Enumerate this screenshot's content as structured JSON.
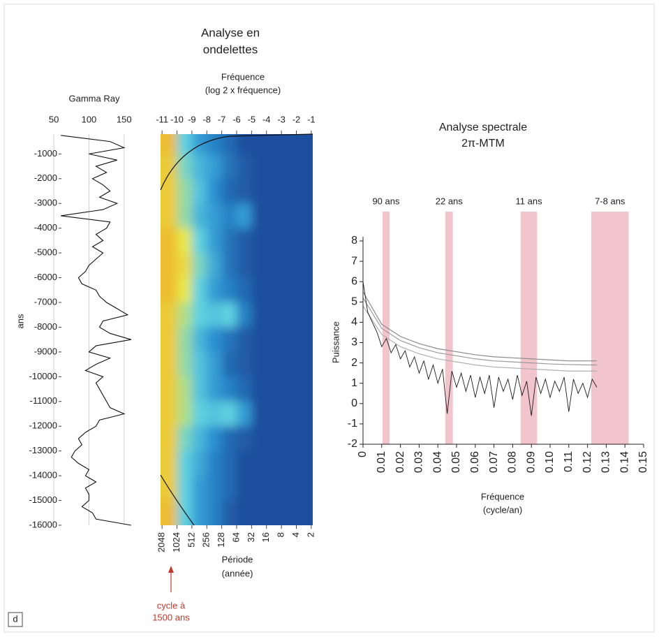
{
  "panel_label": "d",
  "chart_data": [
    {
      "type": "line",
      "orientation": "vertical",
      "title": "Gamma Ray",
      "ylabel": "ans",
      "xlim": [
        33,
        182
      ],
      "xticks": [
        50,
        100,
        150
      ],
      "ylim": [
        -16000,
        -200
      ],
      "yticks": [
        -1000,
        -2000,
        -3000,
        -4000,
        -5000,
        -6000,
        -7000,
        -8000,
        -9000,
        -10000,
        -11000,
        -12000,
        -13000,
        -14000,
        -15000,
        -16000
      ],
      "grid": true,
      "series": [
        {
          "color": "#111111",
          "y": [
            -250,
            -500,
            -750,
            -1000,
            -1250,
            -1500,
            -1750,
            -2000,
            -2250,
            -2500,
            -2750,
            -3000,
            -3250,
            -3500,
            -3750,
            -4000,
            -4250,
            -4500,
            -4750,
            -5000,
            -5250,
            -5500,
            -5750,
            -6000,
            -6250,
            -6500,
            -6750,
            -7000,
            -7250,
            -7500,
            -7750,
            -8000,
            -8250,
            -8500,
            -8750,
            -9000,
            -9250,
            -9500,
            -9750,
            -10000,
            -10250,
            -10500,
            -10750,
            -11000,
            -11250,
            -11500,
            -11750,
            -12000,
            -12250,
            -12500,
            -12750,
            -13000,
            -13250,
            -13500,
            -13750,
            -14000,
            -14250,
            -14500,
            -14750,
            -15000,
            -15250,
            -15500,
            -15750,
            -16000
          ],
          "values": [
            60,
            130,
            150,
            100,
            140,
            110,
            125,
            105,
            120,
            130,
            115,
            140,
            120,
            60,
            130,
            125,
            110,
            120,
            105,
            120,
            110,
            100,
            95,
            85,
            90,
            110,
            115,
            125,
            140,
            155,
            120,
            115,
            130,
            160,
            110,
            100,
            130,
            110,
            95,
            120,
            110,
            115,
            120,
            125,
            130,
            150,
            115,
            110,
            95,
            85,
            90,
            80,
            75,
            85,
            100,
            95,
            110,
            95,
            100,
            100,
            90,
            105,
            110,
            160
          ]
        }
      ]
    },
    {
      "type": "heatmap",
      "title": [
        "Analyse en",
        "ondelettes"
      ],
      "xlabel": [
        "Fréquence",
        "(log 2 x fréquence)"
      ],
      "x2label": [
        "Période",
        "(année)"
      ],
      "annotation": [
        "cycle à",
        "1500 ans"
      ],
      "annotation_color": "#c0392b",
      "annotation_x": -10.4,
      "xlim": [
        -11.1,
        -0.9
      ],
      "xticks": [
        -11,
        -10,
        -9,
        -8,
        -7,
        -6,
        -5,
        -4,
        -3,
        -2,
        -1
      ],
      "x2ticks": [
        2048,
        1024,
        512,
        256,
        128,
        64,
        32,
        16,
        8,
        4,
        2
      ],
      "ylim": [
        -16000,
        -200
      ],
      "colorscale": [
        "#1d4f9f",
        "#2a8fd0",
        "#5fd0e0",
        "#e8e84a",
        "#f0a020"
      ],
      "x": [
        -10.5,
        -9.5,
        -8.5,
        -7.5,
        -6.5,
        -5.5,
        -4.5,
        -3.5,
        -2.5,
        -1.5
      ],
      "y": [
        -500,
        -1500,
        -2500,
        -3500,
        -4500,
        -5500,
        -6500,
        -7500,
        -8500,
        -9500,
        -10500,
        -11500,
        -12500,
        -13500,
        -14500,
        -15500
      ],
      "values": [
        [
          0.9,
          0.5,
          0.3,
          0.2,
          0.1,
          0,
          0,
          0,
          0,
          0
        ],
        [
          0.85,
          0.55,
          0.4,
          0.3,
          0.15,
          0.05,
          0,
          0,
          0,
          0
        ],
        [
          0.85,
          0.6,
          0.45,
          0.25,
          0.1,
          0.05,
          0,
          0,
          0,
          0
        ],
        [
          0.85,
          0.6,
          0.4,
          0.3,
          0.2,
          0.3,
          0,
          0,
          0,
          0
        ],
        [
          0.9,
          0.75,
          0.5,
          0.3,
          0.15,
          0.05,
          0,
          0,
          0,
          0
        ],
        [
          0.9,
          0.8,
          0.55,
          0.35,
          0.15,
          0.05,
          0,
          0,
          0,
          0
        ],
        [
          0.9,
          0.75,
          0.5,
          0.3,
          0.2,
          0.1,
          0,
          0,
          0,
          0
        ],
        [
          0.85,
          0.65,
          0.5,
          0.45,
          0.5,
          0.2,
          0,
          0,
          0,
          0
        ],
        [
          0.85,
          0.6,
          0.4,
          0.25,
          0.15,
          0.05,
          0,
          0,
          0,
          0
        ],
        [
          0.85,
          0.6,
          0.45,
          0.3,
          0.1,
          0.05,
          0,
          0,
          0,
          0
        ],
        [
          0.85,
          0.65,
          0.45,
          0.3,
          0.2,
          0.1,
          0,
          0,
          0,
          0
        ],
        [
          0.85,
          0.65,
          0.5,
          0.45,
          0.5,
          0.3,
          0,
          0,
          0,
          0
        ],
        [
          0.85,
          0.55,
          0.4,
          0.25,
          0.1,
          0.05,
          0,
          0,
          0,
          0
        ],
        [
          0.85,
          0.5,
          0.35,
          0.2,
          0.1,
          0,
          0,
          0,
          0,
          0
        ],
        [
          0.85,
          0.5,
          0.3,
          0.2,
          0.1,
          0,
          0,
          0,
          0,
          0
        ],
        [
          0.9,
          0.5,
          0.3,
          0.2,
          0.05,
          0,
          0,
          0,
          0,
          0
        ]
      ]
    },
    {
      "type": "line",
      "orientation": "horizontal",
      "title": [
        "Analyse spectrale",
        "2π-MTM"
      ],
      "ylabel": "Puissance",
      "xlabel": [
        "Fréquence",
        "(cycle/an)"
      ],
      "xlim": [
        0,
        0.15
      ],
      "xticks": [
        0,
        0.01,
        0.02,
        0.03,
        0.04,
        0.05,
        0.06,
        0.07,
        0.08,
        0.09,
        {
          "value": 0.1,
          "label": "0.10"
        },
        0.11,
        0.12,
        0.13,
        0.14,
        0.15
      ],
      "ylim": [
        -2,
        8
      ],
      "yticks": [
        -2,
        -1,
        0,
        1,
        2,
        3,
        4,
        5,
        6,
        7,
        8
      ],
      "band_color": "#f2c4cb",
      "bands": [
        {
          "label": "90 ans",
          "from": 0.0104,
          "to": 0.0142
        },
        {
          "label": "22 ans",
          "from": 0.044,
          "to": 0.048
        },
        {
          "label": "11 ans",
          "from": 0.0843,
          "to": 0.093
        },
        {
          "label": "7-8 ans",
          "from": 0.122,
          "to": 0.142
        }
      ],
      "series": [
        {
          "color": "#1a1a1a",
          "x": [
            0,
            0.0025,
            0.005,
            0.0075,
            0.01,
            0.0125,
            0.015,
            0.0175,
            0.02,
            0.0225,
            0.025,
            0.0275,
            0.03,
            0.0325,
            0.035,
            0.0375,
            0.04,
            0.0425,
            0.045,
            0.0475,
            0.05,
            0.0525,
            0.055,
            0.0575,
            0.06,
            0.0625,
            0.065,
            0.0675,
            0.07,
            0.0725,
            0.075,
            0.0775,
            0.08,
            0.0825,
            0.085,
            0.0875,
            0.09,
            0.0925,
            0.095,
            0.0975,
            0.1,
            0.1025,
            0.105,
            0.1075,
            0.11,
            0.1125,
            0.115,
            0.1175,
            0.12,
            0.1225,
            0.125
          ],
          "values": [
            6.0,
            4.5,
            4.0,
            3.5,
            2.8,
            3.2,
            2.5,
            2.9,
            2.2,
            2.6,
            1.8,
            2.3,
            1.5,
            2.1,
            1.2,
            1.9,
            1.0,
            1.7,
            -0.5,
            1.6,
            0.8,
            1.5,
            0.6,
            1.4,
            0.3,
            1.3,
            0.5,
            1.4,
            -0.2,
            1.3,
            0.6,
            1.2,
            0.2,
            1.4,
            0.4,
            1.1,
            -0.6,
            1.3,
            0.5,
            1.2,
            0.3,
            1.1,
            0.6,
            1.3,
            -0.4,
            1.2,
            0.5,
            1.0,
            0.3,
            1.2,
            0.8
          ]
        },
        {
          "color": "#8a8a8a",
          "x": [
            0,
            0.01,
            0.02,
            0.03,
            0.04,
            0.05,
            0.06,
            0.07,
            0.08,
            0.09,
            0.1,
            0.11,
            0.12,
            0.125
          ],
          "values": [
            5.5,
            3.9,
            3.3,
            2.95,
            2.7,
            2.55,
            2.4,
            2.3,
            2.25,
            2.2,
            2.15,
            2.1,
            2.1,
            2.1
          ]
        },
        {
          "color": "#9a9a9a",
          "x": [
            0,
            0.01,
            0.02,
            0.03,
            0.04,
            0.05,
            0.06,
            0.07,
            0.08,
            0.09,
            0.1,
            0.11,
            0.12,
            0.125
          ],
          "values": [
            5.2,
            3.7,
            3.1,
            2.75,
            2.5,
            2.35,
            2.2,
            2.1,
            2.05,
            2.0,
            1.95,
            1.92,
            1.9,
            1.9
          ]
        },
        {
          "color": "#b0b0b0",
          "x": [
            0,
            0.01,
            0.02,
            0.03,
            0.04,
            0.05,
            0.06,
            0.07,
            0.08,
            0.09,
            0.1,
            0.11,
            0.12,
            0.125
          ],
          "values": [
            4.8,
            3.4,
            2.8,
            2.45,
            2.2,
            2.05,
            1.9,
            1.8,
            1.75,
            1.7,
            1.65,
            1.6,
            1.6,
            1.6
          ]
        }
      ]
    }
  ]
}
